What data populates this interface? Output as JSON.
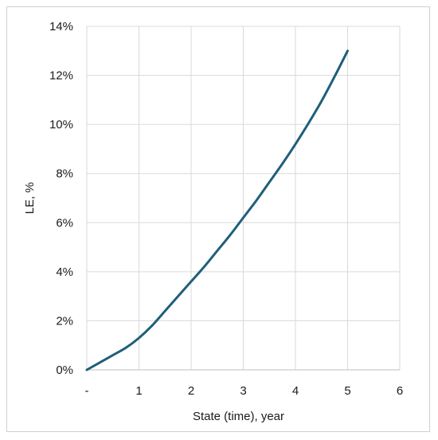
{
  "chart_data": {
    "type": "line",
    "title": "",
    "xlabel": "State (time), year",
    "ylabel": "LE, %",
    "x_tick_labels": [
      "-",
      "1",
      "2",
      "3",
      "4",
      "5",
      "6"
    ],
    "y_tick_labels": [
      "0%",
      "2%",
      "4%",
      "6%",
      "8%",
      "10%",
      "12%",
      "14%"
    ],
    "xlim": [
      0,
      6
    ],
    "ylim": [
      0,
      14
    ],
    "grid": true,
    "series": [
      {
        "color": "#1f5f7a",
        "x": [
          0,
          0.25,
          0.5,
          0.75,
          1,
          1.25,
          1.5,
          1.75,
          2,
          2.25,
          2.5,
          2.75,
          3,
          3.25,
          3.5,
          3.75,
          4,
          4.25,
          4.5,
          4.75,
          5
        ],
        "y": [
          0,
          0.3,
          0.6,
          0.9,
          1.3,
          1.8,
          2.4,
          3.0,
          3.6,
          4.2,
          4.85,
          5.5,
          6.2,
          6.9,
          7.65,
          8.4,
          9.2,
          10.05,
          10.95,
          11.95,
          13.0
        ]
      }
    ]
  }
}
